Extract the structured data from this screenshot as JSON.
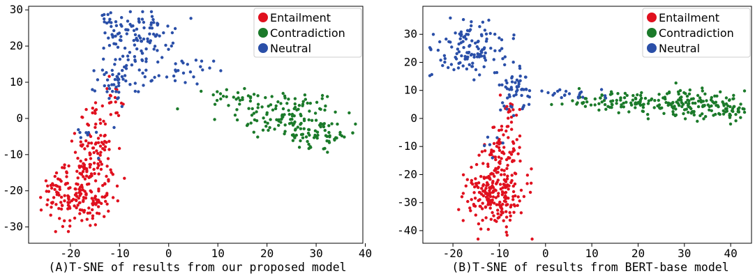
{
  "colors": {
    "Entailment": "#e0101e",
    "Contradiction": "#1b7a2a",
    "Neutral": "#2a4fa8",
    "axis": "#000000",
    "legend_border": "#cccccc"
  },
  "chart_data": [
    {
      "type": "scatter",
      "caption": "(A)T-SNE of results from our proposed model",
      "title": "",
      "xlabel": "",
      "ylabel": "",
      "xlim": [
        -28.5,
        39.5
      ],
      "ylim": [
        -34.5,
        31
      ],
      "xticks": [
        -20,
        -10,
        0,
        10,
        20,
        30,
        40
      ],
      "yticks": [
        -30,
        -20,
        -10,
        0,
        10,
        20,
        30
      ],
      "grid": false,
      "legend_position": "top-right",
      "legend": [
        "Entailment",
        "Contradiction",
        "Neutral"
      ],
      "series": [
        {
          "name": "Entailment",
          "clusters": [
            {
              "cx": -18,
              "cy": -22,
              "sx": 3.2,
              "sy": 4.0,
              "n": 150
            },
            {
              "cx": -16,
              "cy": -12,
              "sx": 2.5,
              "sy": 4.0,
              "n": 80
            },
            {
              "cx": -14,
              "cy": -2,
              "sx": 2.2,
              "sy": 3.0,
              "n": 35
            },
            {
              "cx": -11,
              "cy": 7,
              "sx": 1.6,
              "sy": 2.5,
              "n": 10
            },
            {
              "cx": -23,
              "cy": -19,
              "sx": 1.5,
              "sy": 1.5,
              "n": 15
            }
          ]
        },
        {
          "name": "Contradiction",
          "clusters": [
            {
              "cx": 24,
              "cy": 1,
              "sx": 5.5,
              "sy": 3.5,
              "n": 120
            },
            {
              "cx": 30,
              "cy": -5,
              "sx": 3.0,
              "sy": 2.5,
              "n": 45
            },
            {
              "cx": 14,
              "cy": 6,
              "sx": 3.0,
              "sy": 1.5,
              "n": 25
            },
            {
              "cx": 35,
              "cy": -5,
              "sx": 1.5,
              "sy": 0.8,
              "n": 10
            }
          ]
        },
        {
          "name": "Neutral",
          "clusters": [
            {
              "cx": -6,
              "cy": 23,
              "sx": 3.5,
              "sy": 3.5,
              "n": 100
            },
            {
              "cx": -10,
              "cy": 11,
              "sx": 2.2,
              "sy": 3.5,
              "n": 55
            },
            {
              "cx": 2,
              "cy": 13,
              "sx": 3.5,
              "sy": 1.8,
              "n": 30
            },
            {
              "cx": -13,
              "cy": 26,
              "sx": 1.0,
              "sy": 2.0,
              "n": 10
            },
            {
              "cx": -17,
              "cy": -5,
              "sx": 2.0,
              "sy": 2.0,
              "n": 8
            }
          ]
        }
      ]
    },
    {
      "type": "scatter",
      "caption": "(B)T-SNE of results from BERT-base model",
      "title": "",
      "xlabel": "",
      "ylabel": "",
      "xlim": [
        -26.5,
        44.5
      ],
      "ylim": [
        -44.5,
        40
      ],
      "xticks": [
        -20,
        -10,
        0,
        10,
        20,
        30,
        40
      ],
      "yticks": [
        -40,
        -30,
        -20,
        -10,
        0,
        10,
        20,
        30
      ],
      "grid": false,
      "legend_position": "top-right",
      "legend": [
        "Entailment",
        "Contradiction",
        "Neutral"
      ],
      "series": [
        {
          "name": "Entailment",
          "clusters": [
            {
              "cx": -11,
              "cy": -27,
              "sx": 3.0,
              "sy": 6.0,
              "n": 220
            },
            {
              "cx": -9,
              "cy": -12,
              "sx": 2.0,
              "sy": 4.5,
              "n": 60
            },
            {
              "cx": -7.5,
              "cy": 2,
              "sx": 1.2,
              "sy": 4.0,
              "n": 20
            }
          ]
        },
        {
          "name": "Contradiction",
          "clusters": [
            {
              "cx": 30,
              "cy": 5,
              "sx": 7.0,
              "sy": 2.5,
              "n": 150
            },
            {
              "cx": 15,
              "cy": 6,
              "sx": 6.0,
              "sy": 1.5,
              "n": 70
            },
            {
              "cx": 40,
              "cy": 3,
              "sx": 2.0,
              "sy": 2.0,
              "n": 30
            }
          ]
        },
        {
          "name": "Neutral",
          "clusters": [
            {
              "cx": -16,
              "cy": 25,
              "sx": 4.0,
              "sy": 4.5,
              "n": 120
            },
            {
              "cx": -7,
              "cy": 10,
              "sx": 2.0,
              "sy": 5.0,
              "n": 50
            },
            {
              "cx": 3,
              "cy": 9,
              "sx": 5.0,
              "sy": 1.2,
              "n": 25
            },
            {
              "cx": -11,
              "cy": -10,
              "sx": 1.2,
              "sy": 2.0,
              "n": 6
            }
          ]
        }
      ]
    }
  ]
}
